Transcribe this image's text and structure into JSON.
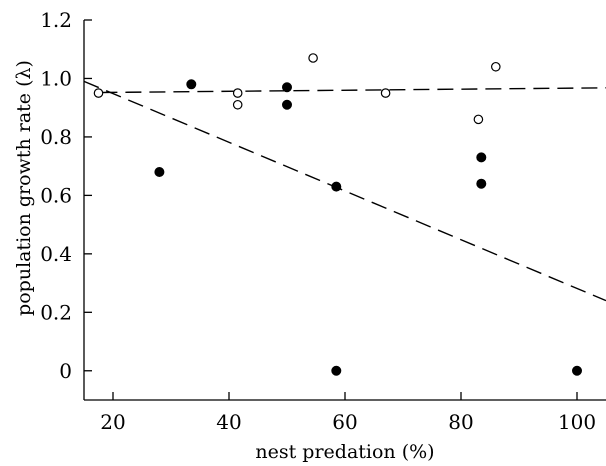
{
  "chart_data": {
    "type": "scatter",
    "xlabel": "nest predation (%)",
    "ylabel": "population growth rate (λ)",
    "xlim": [
      15,
      105
    ],
    "ylim": [
      -0.1,
      1.2
    ],
    "xticks": [
      20,
      40,
      60,
      80,
      100
    ],
    "yticks": [
      0,
      0.2,
      0.4,
      0.6,
      0.8,
      1.0,
      1.2
    ],
    "ytick_labels": [
      "0",
      "0.2",
      "0.4",
      "0.6",
      "0.8",
      "1.0",
      "1.2"
    ],
    "series": [
      {
        "marker": "filled-circle",
        "color": "#000000",
        "points": [
          {
            "x": 28,
            "y": 0.68
          },
          {
            "x": 33.5,
            "y": 0.98
          },
          {
            "x": 50,
            "y": 0.97
          },
          {
            "x": 50,
            "y": 0.91
          },
          {
            "x": 58.5,
            "y": 0.63
          },
          {
            "x": 58.5,
            "y": 0.0
          },
          {
            "x": 83.5,
            "y": 0.73
          },
          {
            "x": 83.5,
            "y": 0.64
          },
          {
            "x": 100,
            "y": 0.0
          }
        ],
        "trend": {
          "x": [
            15,
            105
          ],
          "y": [
            0.99,
            0.24
          ]
        }
      },
      {
        "marker": "open-circle",
        "color": "#000000",
        "points": [
          {
            "x": 17.5,
            "y": 0.95
          },
          {
            "x": 41.5,
            "y": 0.95
          },
          {
            "x": 41.5,
            "y": 0.91
          },
          {
            "x": 54.5,
            "y": 1.07
          },
          {
            "x": 67,
            "y": 0.95
          },
          {
            "x": 83,
            "y": 0.86
          },
          {
            "x": 86,
            "y": 1.04
          }
        ],
        "trend": {
          "x": [
            18,
            105
          ],
          "y": [
            0.952,
            0.968
          ]
        }
      }
    ]
  }
}
